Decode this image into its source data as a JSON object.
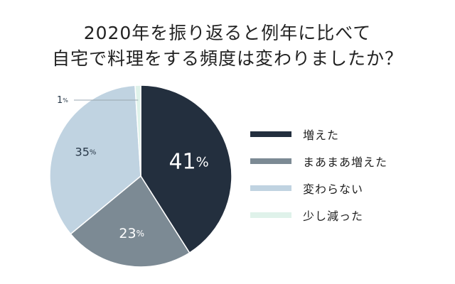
{
  "chart_data": {
    "type": "pie",
    "title_lines": [
      "2020年を振り返ると例年に比べて",
      "自宅で料理をする頻度は変わりましたか？"
    ],
    "slices": [
      {
        "label": "増えた",
        "value": 41,
        "display": "41",
        "color": "#232f3e"
      },
      {
        "label": "まあまあ増えた",
        "value": 23,
        "display": "23",
        "color": "#7c8a94"
      },
      {
        "label": "変わらない",
        "value": 35,
        "display": "35",
        "color": "#c0d3e1"
      },
      {
        "label": "少し減った",
        "value": 1,
        "display": "1",
        "color": "#dff2ea"
      }
    ],
    "unit": "%",
    "legend_position": "right",
    "start": "12 o'clock, clockwise"
  }
}
